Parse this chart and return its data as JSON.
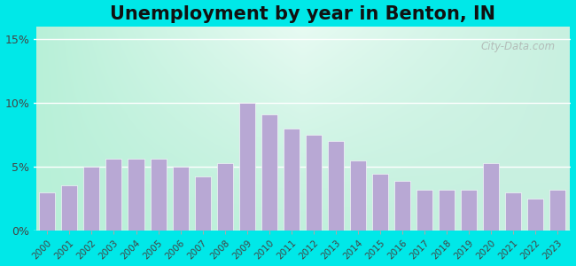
{
  "title": "Unemployment by year in Benton, IN",
  "years": [
    2000,
    2001,
    2002,
    2003,
    2004,
    2005,
    2006,
    2007,
    2008,
    2009,
    2010,
    2011,
    2012,
    2013,
    2014,
    2015,
    2016,
    2017,
    2018,
    2019,
    2020,
    2021,
    2022,
    2023
  ],
  "values": [
    3.0,
    3.5,
    5.0,
    5.6,
    5.6,
    5.6,
    5.0,
    4.2,
    5.3,
    10.0,
    9.1,
    8.0,
    7.5,
    7.0,
    5.5,
    4.4,
    3.9,
    3.2,
    3.2,
    3.2,
    5.3,
    3.0,
    2.5,
    3.2
  ],
  "bar_color": "#b8a8d4",
  "ytick_labels": [
    "0%",
    "5%",
    "10%",
    "15%"
  ],
  "ytick_values": [
    0,
    5,
    10,
    15
  ],
  "ylim": [
    0,
    16
  ],
  "watermark": "City-Data.com",
  "title_fontsize": 15,
  "outer_bg_color": "#00e8e8",
  "plot_bg_left": "#b8f0d8",
  "plot_bg_right": "#d8f5ee",
  "plot_bg_center": "#f0faf8"
}
